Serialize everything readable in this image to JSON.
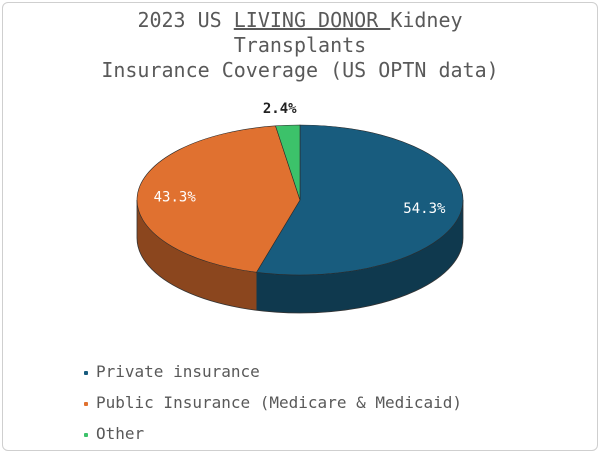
{
  "chart_data": {
    "type": "pie",
    "title_parts": {
      "prefix": "2023 US ",
      "underlined": "LIVING DONOR ",
      "suffix": "Kidney",
      "line2": "Transplants",
      "line3": "Insurance Coverage (US OPTN data)"
    },
    "series": [
      {
        "name": "Private insurance",
        "value": 54.3,
        "label": "54.3%",
        "color": "#185C7E"
      },
      {
        "name": "Public Insurance (Medicare & Medicaid)",
        "value": 43.3,
        "label": "43.3%",
        "color": "#E07130"
      },
      {
        "name": "Other",
        "value": 2.4,
        "label": "2.4%",
        "color": "#3CC26A"
      }
    ],
    "style": "3d",
    "legend_position": "bottom-left"
  }
}
